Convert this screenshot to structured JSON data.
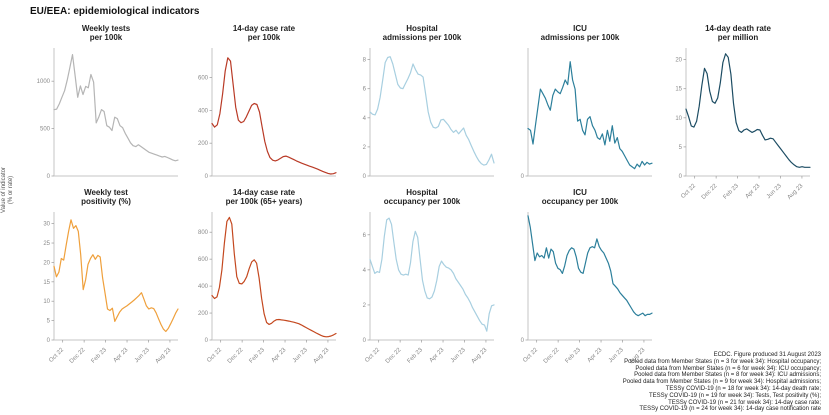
{
  "figure": {
    "title": "EU/EEA: epidemiological indicators",
    "y_axis_label_lines": [
      "Value of indicator",
      "(% or rate)"
    ]
  },
  "x_axis": {
    "tick_labels": [
      "Oct 22",
      "Dec 22",
      "Feb 23",
      "Apr 23",
      "Jun 23",
      "Aug 23"
    ],
    "tick_positions": [
      0.07,
      0.243,
      0.416,
      0.589,
      0.762,
      0.935
    ]
  },
  "chart_data": [
    {
      "id": "weekly-tests",
      "type": "line",
      "title_lines": [
        "Weekly tests",
        "per 100k"
      ],
      "color": "#b5b5b5",
      "ylim": [
        0,
        1350
      ],
      "yticks": [
        0,
        500,
        1000
      ],
      "show_x_labels": false,
      "values": [
        700,
        705,
        760,
        830,
        900,
        1010,
        1140,
        1280,
        1060,
        830,
        950,
        860,
        945,
        930,
        1070,
        990,
        560,
        625,
        700,
        680,
        530,
        515,
        480,
        620,
        605,
        530,
        510,
        450,
        400,
        350,
        320,
        310,
        330,
        310,
        290,
        270,
        250,
        240,
        230,
        220,
        210,
        200,
        207,
        195,
        182,
        170,
        160,
        168
      ]
    },
    {
      "id": "case-rate",
      "type": "line",
      "title_lines": [
        "14-day case rate",
        "per 100k"
      ],
      "color": "#b93a26",
      "ylim": [
        0,
        780
      ],
      "yticks": [
        0,
        200,
        400,
        600
      ],
      "show_x_labels": false,
      "values": [
        320,
        298,
        312,
        380,
        500,
        640,
        720,
        700,
        560,
        420,
        340,
        325,
        332,
        360,
        395,
        430,
        442,
        436,
        390,
        300,
        210,
        150,
        112,
        96,
        92,
        98,
        108,
        118,
        121,
        115,
        108,
        100,
        92,
        85,
        78,
        72,
        66,
        60,
        54,
        48,
        42,
        35,
        28,
        22,
        16,
        12,
        14,
        20
      ]
    },
    {
      "id": "hospital-admissions",
      "type": "line",
      "title_lines": [
        "Hospital",
        "admissions per 100k"
      ],
      "color": "#a8cfe0",
      "ylim": [
        0,
        8.8
      ],
      "yticks": [
        0,
        2,
        4,
        6,
        8
      ],
      "show_x_labels": false,
      "values": [
        4.4,
        4.25,
        4.2,
        4.6,
        5.4,
        6.6,
        7.8,
        8.15,
        8.2,
        7.7,
        7.0,
        6.3,
        6.05,
        6.0,
        6.35,
        6.7,
        7.1,
        7.7,
        7.3,
        7.0,
        6.95,
        6.8,
        5.6,
        4.4,
        3.7,
        3.35,
        3.3,
        3.4,
        3.85,
        3.9,
        3.7,
        3.5,
        3.2,
        3.0,
        3.15,
        2.9,
        3.1,
        3.3,
        2.8,
        2.5,
        2.1,
        1.7,
        1.35,
        1.05,
        0.85,
        0.75,
        0.8,
        1.1,
        1.5,
        0.9
      ]
    },
    {
      "id": "icu-admissions",
      "type": "line",
      "title_lines": [
        "ICU",
        "admissions per 100k"
      ],
      "color": "#2c7f9b",
      "ylim": [
        0,
        1.4
      ],
      "yticks": [
        0
      ],
      "show_x_labels": false,
      "values": [
        0.52,
        0.5,
        0.35,
        0.55,
        0.75,
        0.95,
        0.9,
        0.85,
        0.78,
        0.72,
        0.88,
        0.95,
        0.92,
        0.9,
        0.97,
        1.05,
        1.0,
        1.25,
        1.05,
        0.95,
        0.6,
        0.62,
        0.5,
        0.45,
        0.62,
        0.65,
        0.55,
        0.5,
        0.42,
        0.4,
        0.46,
        0.34,
        0.5,
        0.38,
        0.55,
        0.36,
        0.42,
        0.3,
        0.27,
        0.22,
        0.17,
        0.12,
        0.1,
        0.08,
        0.13,
        0.1,
        0.16,
        0.12,
        0.15,
        0.13,
        0.14
      ]
    },
    {
      "id": "death-rate",
      "type": "line",
      "title_lines": [
        "14-day death rate",
        "per million"
      ],
      "color": "#1c4c63",
      "ylim": [
        0,
        22
      ],
      "yticks": [
        0,
        5,
        10,
        15,
        20
      ],
      "show_x_labels": true,
      "values": [
        11.5,
        10.2,
        8.6,
        8.4,
        9.4,
        12.0,
        15.5,
        18.5,
        17.6,
        14.6,
        12.8,
        12.5,
        13.4,
        16.0,
        19.5,
        21.0,
        20.4,
        17.5,
        12.5,
        9.2,
        7.8,
        7.5,
        7.9,
        8.1,
        7.8,
        7.5,
        7.7,
        8.0,
        7.9,
        7.0,
        6.2,
        6.3,
        6.5,
        6.4,
        5.8,
        5.2,
        4.6,
        4.0,
        3.4,
        2.8,
        2.3,
        1.9,
        1.6,
        1.5,
        1.6,
        1.5,
        1.5,
        1.5
      ]
    },
    {
      "id": "test-positivity",
      "type": "line",
      "title_lines": [
        "Weekly test",
        "positivity (%)"
      ],
      "color": "#efa03c",
      "ylim": [
        0,
        33
      ],
      "yticks": [
        0,
        5,
        10,
        15,
        20,
        25,
        30
      ],
      "show_x_labels": true,
      "values": [
        19,
        16.3,
        17.5,
        21,
        20.6,
        24.5,
        28,
        31,
        28.8,
        29.5,
        28,
        22,
        13,
        15.5,
        19.5,
        21,
        22,
        20.8,
        21.8,
        21.4,
        16,
        12,
        8,
        7.6,
        8.2,
        4.8,
        6,
        7.2,
        8,
        8.4,
        8.8,
        9.3,
        9.8,
        10.3,
        10.9,
        11.5,
        12.2,
        10.5,
        8.8,
        8,
        8.3,
        8.1,
        7,
        5.5,
        4,
        2.8,
        2.2,
        3,
        4.2,
        5.5,
        6.9,
        8
      ]
    },
    {
      "id": "case-rate-65plus",
      "type": "line",
      "title_lines": [
        "14-day case rate",
        "per 100k (65+ years)"
      ],
      "color": "#c4481f",
      "ylim": [
        0,
        950
      ],
      "yticks": [
        0,
        200,
        400,
        600,
        800
      ],
      "show_x_labels": true,
      "values": [
        330,
        308,
        320,
        390,
        520,
        720,
        880,
        910,
        860,
        640,
        470,
        420,
        416,
        435,
        470,
        530,
        580,
        595,
        570,
        460,
        310,
        195,
        130,
        116,
        124,
        140,
        151,
        152,
        149,
        147,
        144,
        140,
        136,
        132,
        127,
        121,
        112,
        102,
        92,
        82,
        72,
        62,
        52,
        43,
        34,
        27,
        24,
        25,
        30,
        38,
        48
      ]
    },
    {
      "id": "hospital-occupancy",
      "type": "line",
      "title_lines": [
        "Hospital",
        "occupancy per 100k"
      ],
      "color": "#a8cfe0",
      "ylim": [
        0,
        7.3
      ],
      "yticks": [
        0,
        2,
        4,
        6
      ],
      "show_x_labels": true,
      "values": [
        4.6,
        4.2,
        3.8,
        3.9,
        3.85,
        4.6,
        5.9,
        6.85,
        6.95,
        6.6,
        5.6,
        4.6,
        4.0,
        3.75,
        3.7,
        3.75,
        3.7,
        4.4,
        5.6,
        6.2,
        5.85,
        4.6,
        3.4,
        2.8,
        2.4,
        2.35,
        2.45,
        2.8,
        3.4,
        4.2,
        4.5,
        4.3,
        4.15,
        4.1,
        4.0,
        3.8,
        3.5,
        3.3,
        3.1,
        2.9,
        2.6,
        2.4,
        2.15,
        1.85,
        1.6,
        1.35,
        1.1,
        0.9,
        0.85,
        0.5,
        1.5,
        1.95,
        2.0
      ]
    },
    {
      "id": "icu-occupancy",
      "type": "line",
      "title_lines": [
        "ICU",
        "occupancy per 100k"
      ],
      "color": "#2c7f9b",
      "ylim": [
        0,
        1.0
      ],
      "yticks": [
        0
      ],
      "show_x_labels": true,
      "values": [
        0.97,
        0.88,
        0.75,
        0.62,
        0.68,
        0.65,
        0.66,
        0.64,
        0.72,
        0.64,
        0.71,
        0.69,
        0.6,
        0.56,
        0.55,
        0.52,
        0.58,
        0.66,
        0.7,
        0.72,
        0.71,
        0.65,
        0.56,
        0.53,
        0.52,
        0.6,
        0.68,
        0.72,
        0.73,
        0.72,
        0.79,
        0.73,
        0.7,
        0.68,
        0.64,
        0.6,
        0.54,
        0.44,
        0.42,
        0.4,
        0.37,
        0.35,
        0.33,
        0.31,
        0.28,
        0.25,
        0.22,
        0.2,
        0.19,
        0.2,
        0.21,
        0.19,
        0.2,
        0.2,
        0.21
      ]
    }
  ],
  "footer": {
    "lines": [
      "ECDC. Figure produced 31 August 2023",
      "Pooled data from Member States (n = 3 for week 34): Hospital occupancy;",
      "Pooled data from Member States (n = 6 for week 34): ICU occupancy;",
      "Pooled data from Member States (n = 8 for week 34): ICU admissions;",
      "Pooled data from Member States (n = 9 for week 34): Hospital admissions;",
      "TESSy COVID-19 (n = 18 for week 34): 14-day death rate;",
      "TESSy COVID-19 (n = 19 for week 34): Tests, Test positivity (%);",
      "TESSy COVID-19 (n = 21 for week 34): 14-day case rate;",
      "TESSy COVID-19 (n = 24 for week 34): 14-day case notification rate"
    ]
  }
}
